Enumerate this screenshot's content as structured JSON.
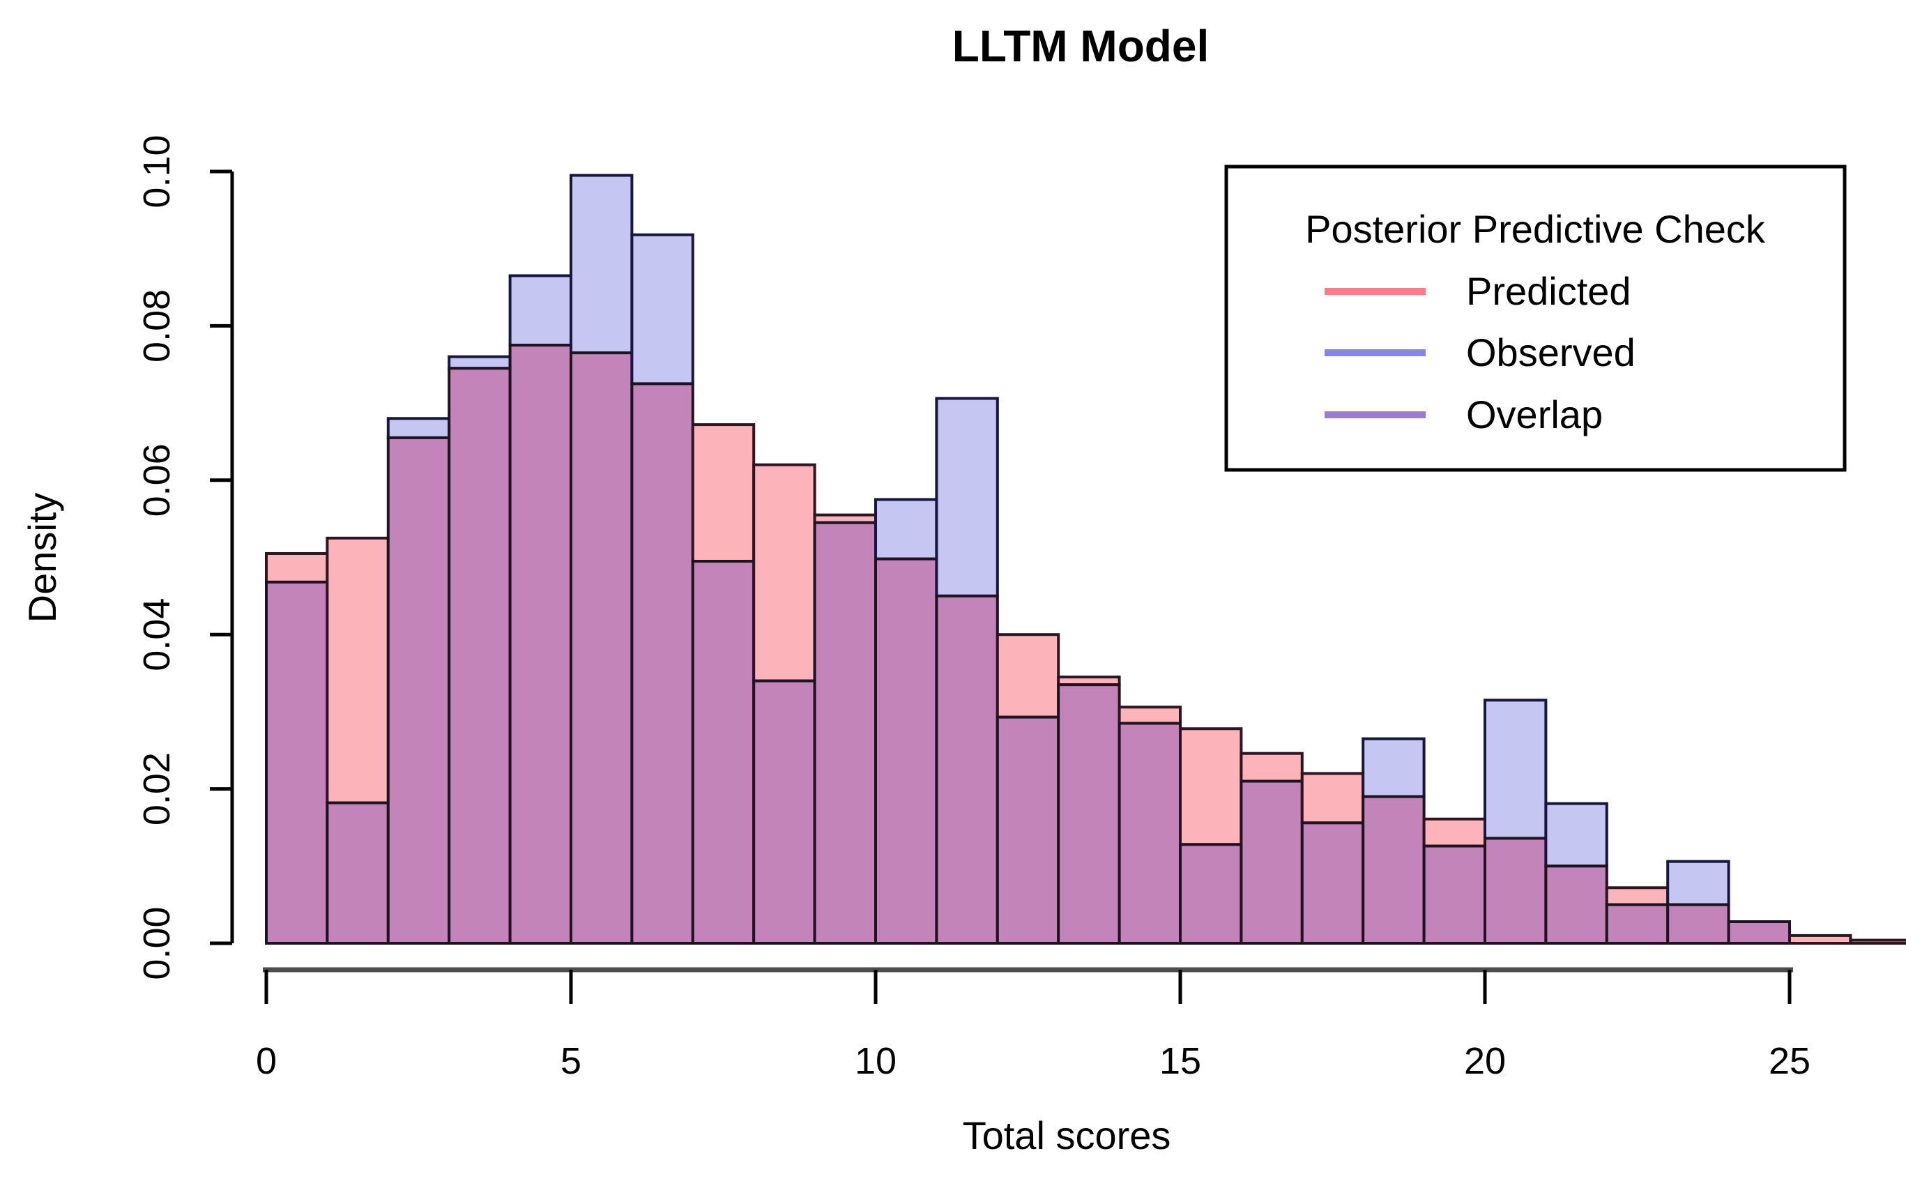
{
  "page": {
    "background": "#ffffff"
  },
  "chart_data": {
    "type": "bar",
    "subtype": "overlaid-histograms",
    "title": "LLTM Model",
    "xlabel": "Total scores",
    "ylabel": "Density",
    "xlim": [
      0,
      27
    ],
    "ylim": [
      0,
      0.1
    ],
    "grid": "off",
    "bin_width": 1,
    "bin_starts": [
      0,
      1,
      2,
      3,
      4,
      5,
      6,
      7,
      8,
      9,
      10,
      11,
      12,
      13,
      14,
      15,
      16,
      17,
      18,
      19,
      20,
      21,
      22,
      23,
      24,
      25,
      26
    ],
    "x_ticks": [
      0,
      5,
      10,
      15,
      20,
      25
    ],
    "x_tick_labels": [
      "0",
      "5",
      "10",
      "15",
      "20",
      "25"
    ],
    "y_ticks": [
      0.0,
      0.02,
      0.04,
      0.06,
      0.08,
      0.1
    ],
    "y_tick_labels": [
      "0.00",
      "0.02",
      "0.04",
      "0.06",
      "0.08",
      "0.10"
    ],
    "series": [
      {
        "name": "Predicted",
        "values": [
          0.0505,
          0.0525,
          0.0655,
          0.0745,
          0.0775,
          0.0765,
          0.0725,
          0.0672,
          0.062,
          0.0555,
          0.0498,
          0.045,
          0.04,
          0.0345,
          0.0306,
          0.0278,
          0.0246,
          0.022,
          0.019,
          0.0161,
          0.0136,
          0.01,
          0.0072,
          0.005,
          0.0028,
          0.001,
          0.0004
        ]
      },
      {
        "name": "Observed",
        "values": [
          0.0468,
          0.0182,
          0.068,
          0.076,
          0.0865,
          0.0995,
          0.0918,
          0.0495,
          0.034,
          0.0545,
          0.0575,
          0.0706,
          0.0293,
          0.0335,
          0.0285,
          0.0128,
          0.021,
          0.0156,
          0.0265,
          0.0126,
          0.0315,
          0.0181,
          0.005,
          0.0106,
          0.0028,
          0.0,
          0.0
        ]
      }
    ],
    "legend": {
      "title": "Posterior Predictive Check",
      "position": "top-right",
      "entries": [
        {
          "label": "Predicted",
          "color": "#F4808B"
        },
        {
          "label": "Observed",
          "color": "#8686E8"
        },
        {
          "label": "Overlap",
          "color": "#9B7BD4"
        }
      ]
    }
  },
  "colors": {
    "predicted_fill": "#FCB4BA",
    "observed_fill": "#C6C6F3",
    "overlap_fill": "#C385B9",
    "predicted_border": "#2E1520",
    "observed_border": "#16163F",
    "overlap_border": "#1F1322",
    "axis_line": "#000000",
    "x_axis_line": "#4D4D4D",
    "legend_border": "#000000",
    "legend_predicted": "#F4808B",
    "legend_observed": "#8686E8",
    "legend_overlap": "#9B7BD4"
  }
}
